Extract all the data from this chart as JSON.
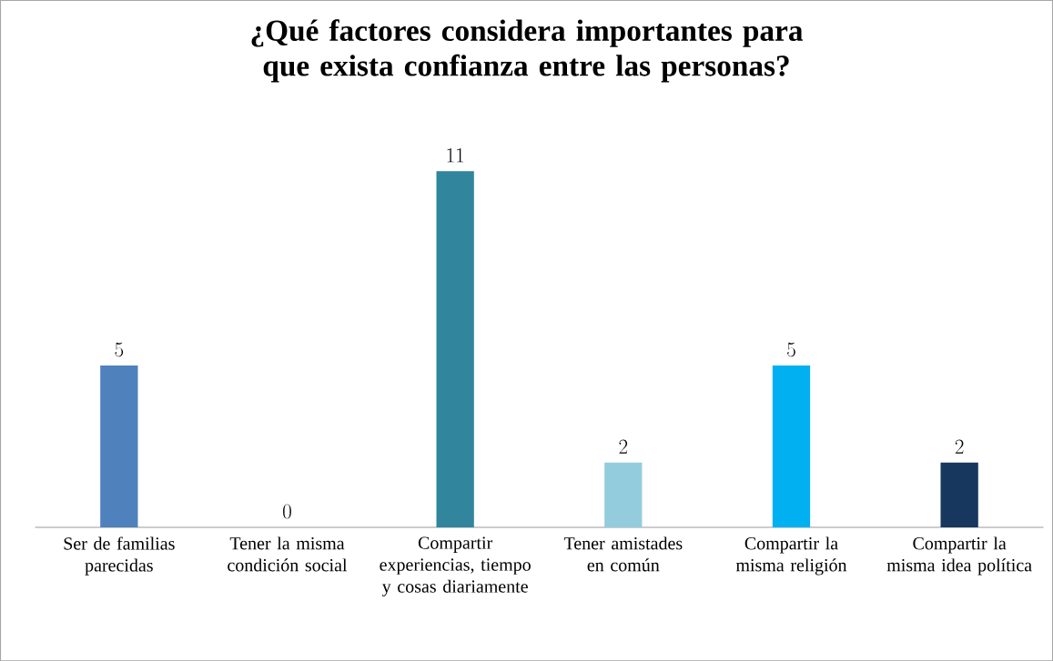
{
  "chart_data": {
    "type": "bar",
    "title": "¿Qué factores considera importantes para que exista confianza entre las personas?",
    "categories": [
      "Ser de familias parecidas",
      "Tener la misma condición social",
      "Compartir experiencias, tiempo y cosas diariamente",
      "Tener amistades en común",
      "Compartir la misma religión",
      "Compartir la misma idea política"
    ],
    "values": [
      5,
      0,
      11,
      2,
      5,
      2
    ],
    "colors": [
      "#4f81bd",
      "#c0504d",
      "#31859c",
      "#93cddd",
      "#00b0f0",
      "#17375e"
    ],
    "data_labels": true
  }
}
